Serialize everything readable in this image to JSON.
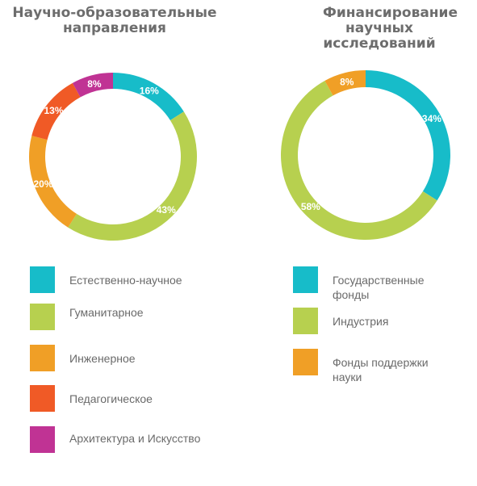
{
  "colors": {
    "cyan": "#17bcc9",
    "green": "#b7d04f",
    "orange": "#f09f26",
    "red": "#f05a26",
    "purple": "#c03394"
  },
  "chart_data": [
    {
      "type": "pie",
      "donut": true,
      "title": "Научно-образовательные направления",
      "categories": [
        "Естественно-научное",
        "Гуманитарное",
        "Инженерное",
        "Педагогическое",
        "Архитектура и Искусство"
      ],
      "values": [
        16,
        43,
        20,
        13,
        8
      ],
      "value_labels": [
        "16%",
        "43%",
        "20%",
        "13%",
        "8%"
      ],
      "colors": [
        "#17bcc9",
        "#b7d04f",
        "#f09f26",
        "#f05a26",
        "#c03394"
      ],
      "legend": "below"
    },
    {
      "type": "pie",
      "donut": true,
      "title": "Финансирование научных исследований",
      "categories": [
        "Государственные фонды",
        "Индустрия",
        "Фонды поддержки науки"
      ],
      "values": [
        34,
        58,
        8
      ],
      "value_labels": [
        "34%",
        "58%",
        "8%"
      ],
      "colors": [
        "#17bcc9",
        "#b7d04f",
        "#f09f26"
      ],
      "legend": "below"
    }
  ]
}
